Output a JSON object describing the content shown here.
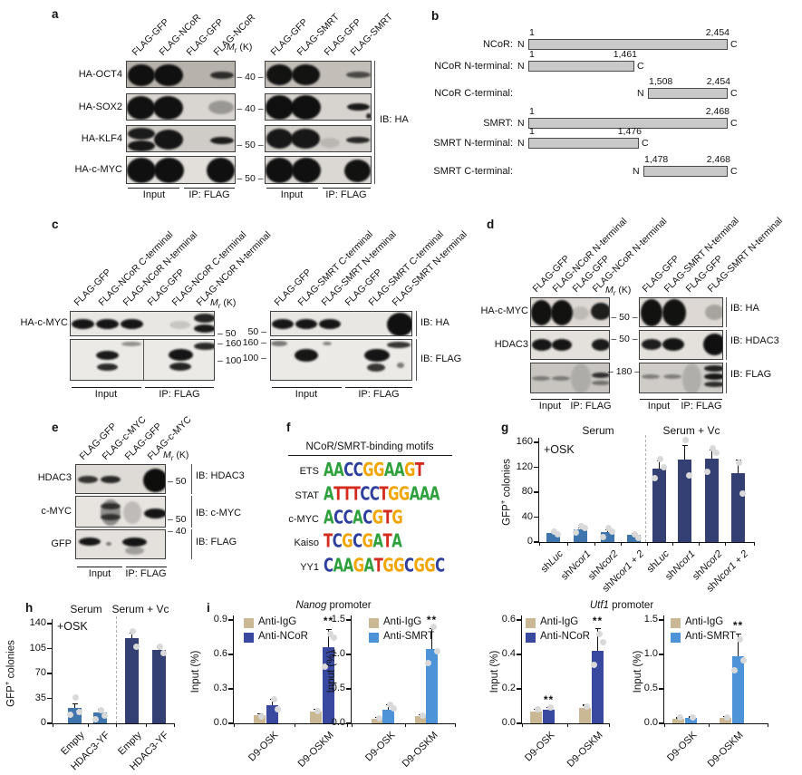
{
  "panels": {
    "a": "a",
    "b": "b",
    "c": "c",
    "d": "d",
    "e": "e",
    "f": "f",
    "g": "g",
    "h": "h",
    "i": "i"
  },
  "common": {
    "mr_m": "M",
    "mr_r": "r",
    "mr_k": " (K)",
    "input": "Input",
    "ip_flag": "IP: FLAG",
    "n": "N",
    "c": "C"
  },
  "panel_a": {
    "left_lanes": [
      "FLAG-GFP",
      "FLAG-NCoR",
      "FLAG-GFP",
      "FLAG-NCoR"
    ],
    "right_lanes": [
      "FLAG-GFP",
      "FLAG-SMRT",
      "FLAG-GFP",
      "FLAG-SMRT"
    ],
    "row_labels": [
      "HA-OCT4",
      "HA-SOX2",
      "HA-KLF4",
      "HA-c-MYC"
    ],
    "markers": [
      "40",
      "40",
      "50",
      "50"
    ],
    "ib": "IB: HA"
  },
  "panel_b": {
    "rows": [
      {
        "name": "NCoR:",
        "start": "1",
        "end": "2,454"
      },
      {
        "name": "NCoR N-terminal:",
        "start": "1",
        "end": "1,461"
      },
      {
        "name": "NCoR C-terminal:",
        "start": "1,508",
        "end": "2,454"
      },
      {
        "name": "SMRT:",
        "start": "1",
        "end": "2,468"
      },
      {
        "name": "SMRT N-terminal:",
        "start": "1",
        "end": "1,476"
      },
      {
        "name": "SMRT C-terminal:",
        "start": "1,478",
        "end": "2,468"
      }
    ]
  },
  "panel_c": {
    "left_lanes": [
      "FLAG-GFP",
      "FLAG-NCoR C-terminal",
      "FLAG-NCoR N-terminal",
      "FLAG-GFP",
      "FLAG-NCoR C-terminal",
      "FLAG-NCoR N-terminal"
    ],
    "right_lanes": [
      "FLAG-GFP",
      "FLAG-SMRT C-terminal",
      "FLAG-SMRT N-terminal",
      "FLAG-GFP",
      "FLAG-SMRT C-terminal",
      "FLAG-SMRT N-terminal"
    ],
    "row_label": "HA-c-MYC",
    "markers": [
      "50",
      "160",
      "100"
    ],
    "ib_ha": "IB: HA",
    "ib_flag": "IB: FLAG"
  },
  "panel_d": {
    "left_lanes": [
      "FLAG-GFP",
      "FLAG-NCoR N-terminal",
      "FLAG-GFP",
      "FLAG-NCoR N-terminal"
    ],
    "right_lanes": [
      "FLAG-GFP",
      "FLAG-SMRT N-terminal",
      "FLAG-GFP",
      "FLAG-SMRT N-terminal"
    ],
    "row_labels": [
      "HA-c-MYC",
      "HDAC3"
    ],
    "markers": [
      "50",
      "50",
      "180"
    ],
    "ib": [
      "IB: HA",
      "IB: HDAC3",
      "IB: FLAG"
    ]
  },
  "panel_e": {
    "lanes": [
      "FLAG-GFP",
      "FLAG-c-MYC",
      "FLAG-GFP",
      "FLAG-c-MYC"
    ],
    "row_labels": [
      "HDAC3",
      "c-MYC",
      "GFP"
    ],
    "markers": [
      "50",
      "50",
      "40"
    ],
    "ib": [
      "IB: HDAC3",
      "IB: c-MYC",
      "IB: FLAG"
    ]
  },
  "panel_f": {
    "title": "NCoR/SMRT-binding motifs",
    "motifs": [
      {
        "name": "ETS",
        "seq": "AACCGGAAGT"
      },
      {
        "name": "STAT",
        "seq": "ATTTCCTGGAAA"
      },
      {
        "name": "c-MYC",
        "seq": "ACCACGTG"
      },
      {
        "name": "Kaiso",
        "seq": "TCGCGATA"
      },
      {
        "name": "YY1",
        "seq": "CAAGATGGCGGC"
      }
    ],
    "base_colors": {
      "A": "#2fa13c",
      "C": "#2f3f9e",
      "G": "#f0a500",
      "T": "#d32b1e"
    }
  },
  "panel_i": {
    "titles": [
      {
        "it": "Nanog",
        "rest": " promoter"
      },
      {
        "it": "Utf1",
        "rest": " promoter"
      }
    ]
  },
  "chart_data": [
    {
      "id": "g",
      "type": "bar",
      "annotation": "+OSK",
      "group_titles": [
        "Serum",
        "Serum + Vc"
      ],
      "ylabel": {
        "pre": "GFP",
        "sup": "+",
        "post": " colonies"
      },
      "ylim": [
        0,
        160
      ],
      "yticks": [
        "0",
        "40",
        "80",
        "120",
        "160"
      ],
      "categories": [
        {
          "pre": "sh",
          "it": "Luc"
        },
        {
          "pre": "sh",
          "it": "Ncor1"
        },
        {
          "pre": "sh",
          "it": "Ncor2"
        },
        {
          "pre": "sh",
          "it": "Ncor1 + 2"
        }
      ],
      "series": [
        {
          "name": "Serum",
          "color": "#3e75ad",
          "values": [
            14,
            20,
            16,
            11
          ],
          "errors": [
            3,
            3,
            4,
            2
          ],
          "points": [
            [
              17,
              13
            ],
            [
              25,
              22,
              15
            ],
            [
              22,
              17,
              8
            ],
            [
              13,
              7
            ]
          ]
        },
        {
          "name": "Serum + Vc",
          "color": "#343f73",
          "values": [
            118,
            133,
            134,
            111
          ],
          "errors": [
            12,
            22,
            14,
            21
          ],
          "points": [
            [
              133,
              120,
              103
            ],
            [
              163,
              107
            ],
            [
              150,
              143,
              113
            ],
            [
              128,
              78
            ]
          ]
        }
      ]
    },
    {
      "id": "h",
      "type": "bar",
      "annotation": "+OSK",
      "group_titles": [
        "Serum",
        "Serum + Vc"
      ],
      "ylabel": {
        "pre": "GFP",
        "sup": "+",
        "post": " colonies"
      },
      "ylim": [
        0,
        140
      ],
      "yticks": [
        "0",
        "35",
        "70",
        "105",
        "140"
      ],
      "categories": [
        {
          "pre": "Empty",
          "it": ""
        },
        {
          "pre": "HDAC3-YF",
          "it": ""
        }
      ],
      "series": [
        {
          "name": "Serum",
          "color": "#3e75ad",
          "values": [
            22,
            15
          ],
          "errors": [
            5,
            4
          ],
          "points": [
            [
              36,
              16,
              12
            ],
            [
              19,
              11,
              6
            ]
          ]
        },
        {
          "name": "Serum + Vc",
          "color": "#343f73",
          "values": [
            120,
            103
          ],
          "errors": [
            7,
            4
          ],
          "points": [
            [
              129,
              107
            ],
            [
              107,
              99
            ]
          ]
        }
      ]
    },
    {
      "id": "i1",
      "type": "bar",
      "ylabel_simple": "Input (%)",
      "ylim": [
        0,
        0.9
      ],
      "yticks": [
        "0.0",
        "0.3",
        "0.6",
        "0.9"
      ],
      "categories": [
        {
          "pre": "D9-OSK",
          "it": ""
        },
        {
          "pre": "D9-OSKM",
          "it": ""
        }
      ],
      "legend": [
        "Anti-IgG",
        "Anti-NCoR"
      ],
      "series": [
        {
          "name": "Anti-IgG",
          "color": "#c9b893",
          "values": [
            0.07,
            0.1
          ],
          "errors": [
            0.015,
            0.02
          ],
          "points": [
            [
              0.06
            ],
            [
              0.11
            ]
          ]
        },
        {
          "name": "Anti-NCoR",
          "color": "#3a49a0",
          "values": [
            0.16,
            0.66
          ],
          "errors": [
            0.05,
            0.16
          ],
          "points": [
            [
              0.21,
              0.12
            ],
            [
              0.78,
              0.75,
              0.49
            ]
          ]
        }
      ],
      "sig": [
        {
          "group": 1,
          "label": "**"
        }
      ]
    },
    {
      "id": "i2",
      "type": "bar",
      "ylabel_simple": "Input (%)",
      "ylim": [
        0,
        1.5
      ],
      "yticks": [
        "0.0",
        "0.5",
        "1.0",
        "1.5"
      ],
      "categories": [
        {
          "pre": "D9-OSK",
          "it": ""
        },
        {
          "pre": "D9-OSKM",
          "it": ""
        }
      ],
      "legend": [
        "Anti-IgG",
        "Anti-SMRT"
      ],
      "series": [
        {
          "name": "Anti-IgG",
          "color": "#c9b893",
          "values": [
            0.07,
            0.1
          ],
          "errors": [
            0.02,
            0.02
          ],
          "points": [
            [
              0.07
            ],
            [
              0.11
            ]
          ]
        },
        {
          "name": "Anti-SMRT",
          "color": "#4d93d8",
          "values": [
            0.2,
            1.08
          ],
          "errors": [
            0.07,
            0.3
          ],
          "points": [
            [
              0.27,
              0.22
            ],
            [
              1.4,
              1.05,
              0.88
            ]
          ]
        }
      ],
      "sig": [
        {
          "group": 1,
          "label": "**"
        }
      ]
    },
    {
      "id": "i3",
      "type": "bar",
      "ylabel_simple": "Input (%)",
      "ylim": [
        0,
        0.6
      ],
      "yticks": [
        "0.0",
        "0.2",
        "0.4",
        "0.6"
      ],
      "categories": [
        {
          "pre": "D9-OSK",
          "it": ""
        },
        {
          "pre": "D9-OSKM",
          "it": ""
        }
      ],
      "legend": [
        "Anti-IgG",
        "Anti-NCoR"
      ],
      "series": [
        {
          "name": "Anti-IgG",
          "color": "#c9b893",
          "values": [
            0.07,
            0.09
          ],
          "errors": [
            0.01,
            0.015
          ],
          "points": [
            [
              0.08
            ],
            [
              0.1
            ]
          ]
        },
        {
          "name": "Anti-NCoR",
          "color": "#3a49a0",
          "values": [
            0.08,
            0.42
          ],
          "errors": [
            0.012,
            0.13
          ],
          "points": [
            [
              0.09
            ],
            [
              0.52,
              0.47,
              0.34
            ]
          ]
        }
      ],
      "sig": [
        {
          "group": 0,
          "label": "**"
        },
        {
          "group": 1,
          "label": "**"
        }
      ]
    },
    {
      "id": "i4",
      "type": "bar",
      "ylabel_simple": "Input (%)",
      "ylim": [
        0,
        1.5
      ],
      "yticks": [
        "0.0",
        "0.5",
        "1.0",
        "1.5"
      ],
      "categories": [
        {
          "pre": "D9-OSK",
          "it": ""
        },
        {
          "pre": "D9-OSKM",
          "it": ""
        }
      ],
      "legend": [
        "Anti-IgG",
        "Anti-SMRT"
      ],
      "series": [
        {
          "name": "Anti-IgG",
          "color": "#c9b893",
          "values": [
            0.07,
            0.08
          ],
          "errors": [
            0.01,
            0.015
          ],
          "points": [
            [
              0.08
            ],
            [
              0.09
            ]
          ]
        },
        {
          "name": "Anti-SMRT",
          "color": "#4d93d8",
          "values": [
            0.08,
            0.97
          ],
          "errors": [
            0.012,
            0.33
          ],
          "points": [
            [
              0.09
            ],
            [
              1.22,
              0.92,
              0.77
            ]
          ]
        }
      ],
      "sig": [
        {
          "group": 1,
          "label": "**"
        }
      ]
    }
  ]
}
